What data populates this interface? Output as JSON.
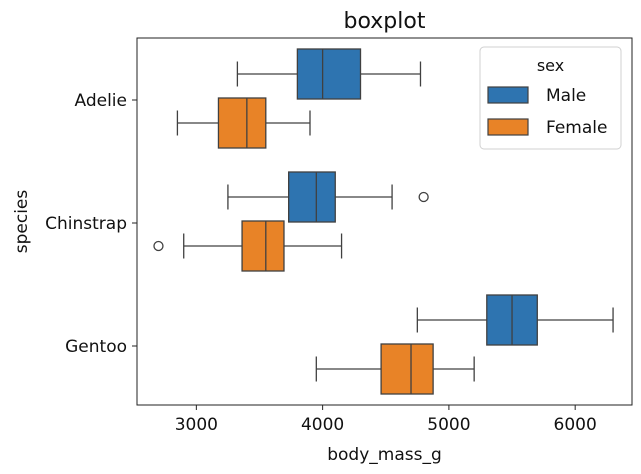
{
  "chart_data": {
    "type": "boxplot",
    "orientation": "horizontal",
    "title": "boxplot",
    "xlabel": "body_mass_g",
    "ylabel": "species",
    "xlim": [
      2530,
      6450
    ],
    "xticks": [
      3000,
      4000,
      5000,
      6000
    ],
    "xtick_labels": [
      "3000",
      "4000",
      "5000",
      "6000"
    ],
    "categories": [
      "Adelie",
      "Chinstrap",
      "Gentoo"
    ],
    "legend": {
      "title": "sex",
      "placement": "upper-right"
    },
    "series": [
      {
        "name": "Male",
        "color": "#2e74b0",
        "boxes": [
          {
            "category": "Adelie",
            "whislo": 3325,
            "q1": 3800,
            "med": 4000,
            "q3": 4300,
            "whishi": 4775,
            "fliers": []
          },
          {
            "category": "Chinstrap",
            "whislo": 3250,
            "q1": 3731,
            "med": 3950,
            "q3": 4100,
            "whishi": 4550,
            "fliers": [
              4800
            ]
          },
          {
            "category": "Gentoo",
            "whislo": 4750,
            "q1": 5300,
            "med": 5500,
            "q3": 5700,
            "whishi": 6300,
            "fliers": []
          }
        ]
      },
      {
        "name": "Female",
        "color": "#e88327",
        "boxes": [
          {
            "category": "Adelie",
            "whislo": 2850,
            "q1": 3175,
            "med": 3400,
            "q3": 3550,
            "whishi": 3900,
            "fliers": []
          },
          {
            "category": "Chinstrap",
            "whislo": 2900,
            "q1": 3362,
            "med": 3550,
            "q3": 3694,
            "whishi": 4150,
            "fliers": [
              2700
            ]
          },
          {
            "category": "Gentoo",
            "whislo": 3950,
            "q1": 4463,
            "med": 4700,
            "q3": 4875,
            "whishi": 5200,
            "fliers": []
          }
        ]
      }
    ],
    "grid": false
  }
}
